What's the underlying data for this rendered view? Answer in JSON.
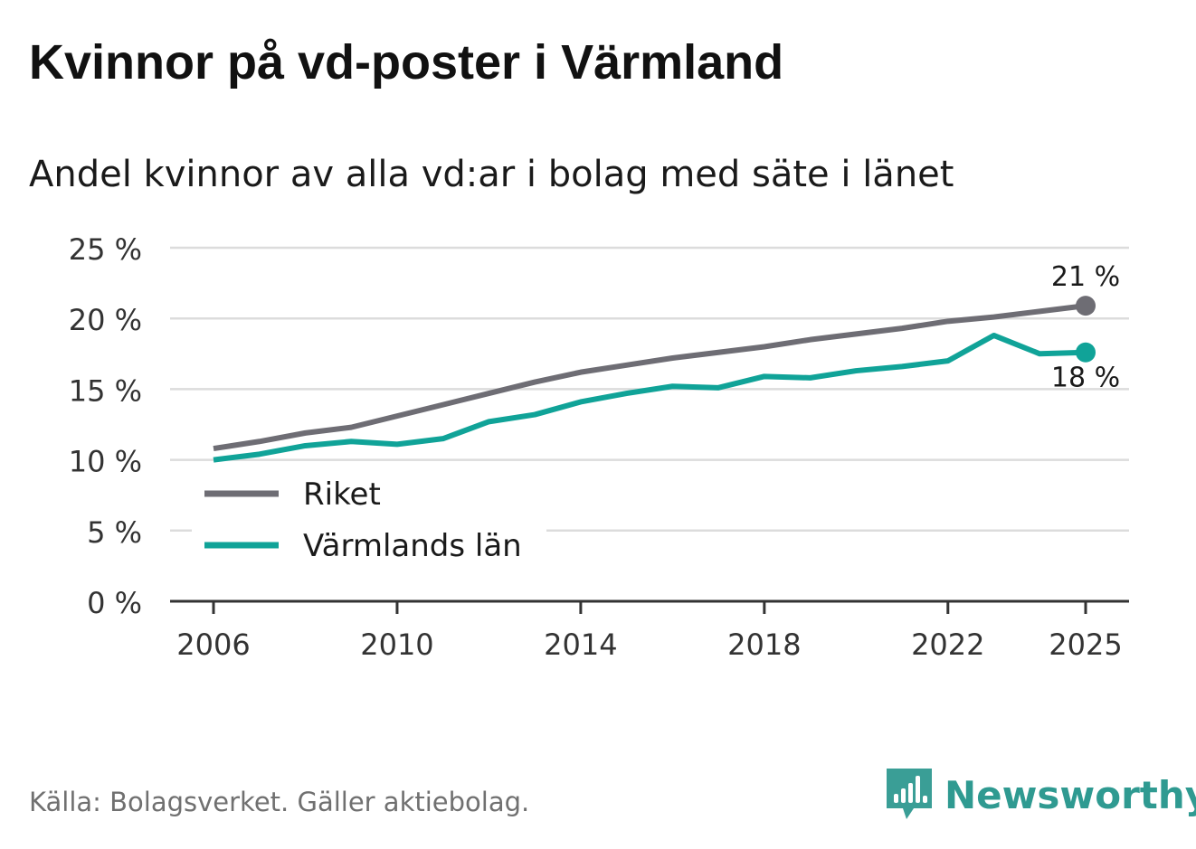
{
  "title": "Kvinnor på vd-poster i Värmland",
  "subtitle": "Andel kvinnor av alla vd:ar i bolag med säte i länet",
  "footer": "Källa: Bolagsverket. Gäller aktiebolag.",
  "brand": {
    "name": "Newsworthy",
    "color": "#3a9e96"
  },
  "chart_data": {
    "type": "line",
    "x": [
      2006,
      2007,
      2008,
      2009,
      2010,
      2011,
      2012,
      2013,
      2014,
      2015,
      2016,
      2017,
      2018,
      2019,
      2020,
      2021,
      2022,
      2023,
      2024,
      2025
    ],
    "series": [
      {
        "name": "Riket",
        "color": "#6e6d74",
        "values": [
          10.8,
          11.3,
          11.9,
          12.3,
          13.1,
          13.9,
          14.7,
          15.5,
          16.2,
          16.7,
          17.2,
          17.6,
          18.0,
          18.5,
          18.9,
          19.3,
          19.8,
          20.1,
          20.5,
          20.9
        ],
        "end_label": "21 %"
      },
      {
        "name": "Värmlands län",
        "color": "#10a398",
        "values": [
          10.0,
          10.4,
          11.0,
          11.3,
          11.1,
          11.5,
          12.7,
          13.2,
          14.1,
          14.7,
          15.2,
          15.1,
          15.9,
          15.8,
          16.3,
          16.6,
          17.0,
          18.8,
          17.5,
          17.6
        ],
        "end_label": "18 %"
      }
    ],
    "yticks": [
      0,
      5,
      10,
      15,
      20,
      25
    ],
    "ytick_labels": [
      "0 %",
      "5 %",
      "10 %",
      "15 %",
      "20 %",
      "25 %"
    ],
    "xticks": [
      2006,
      2010,
      2014,
      2018,
      2022,
      2025
    ],
    "xtick_labels": [
      "2006",
      "2010",
      "2014",
      "2018",
      "2022",
      "2025"
    ],
    "ylim": [
      0,
      25
    ],
    "xlim": [
      2006,
      2025
    ],
    "grid": true,
    "legend": "left-middle",
    "xlabel": "",
    "ylabel": ""
  }
}
